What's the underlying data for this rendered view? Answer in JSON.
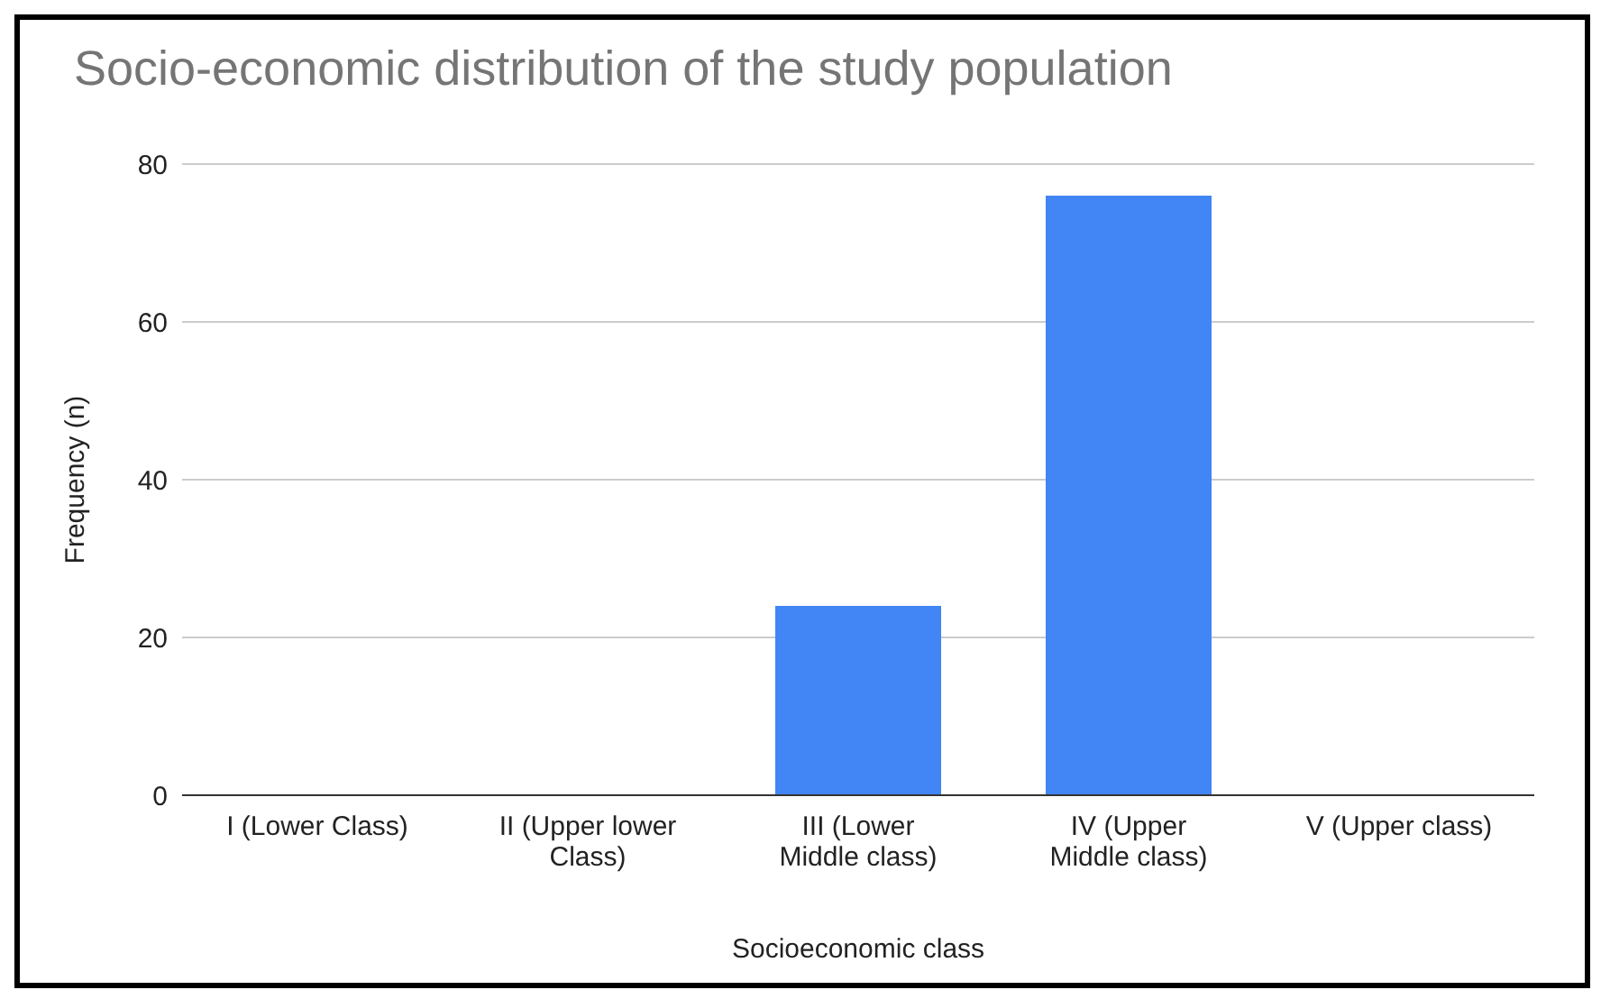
{
  "chart_data": {
    "type": "bar",
    "title": "Socio-economic distribution of the study population",
    "xlabel": "Socioeconomic class",
    "ylabel": "Frequency (n)",
    "categories": [
      "I (Lower Class)",
      "II (Upper lower Class)",
      "III (Lower Middle class)",
      "IV (Upper Middle class)",
      "V (Upper class)"
    ],
    "values": [
      0,
      0,
      24,
      76,
      0
    ],
    "color": "#4285f4",
    "ylim": [
      0,
      80
    ],
    "yticks": [
      0,
      20,
      40,
      60,
      80
    ],
    "grid": "y",
    "legend": false
  }
}
